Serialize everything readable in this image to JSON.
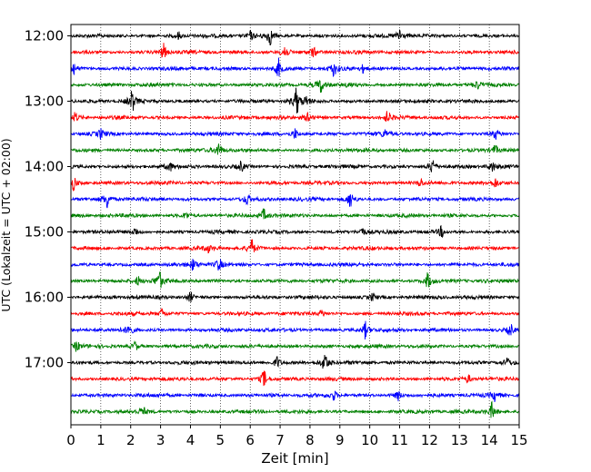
{
  "chart_data": {
    "type": "line",
    "title": "",
    "xlabel": "Zeit  [min]",
    "ylabel": "UTC (Lokalzeit = UTC + 02:00)",
    "xlim": [
      0,
      15
    ],
    "x_ticks": [
      "0",
      "1",
      "2",
      "3",
      "4",
      "5",
      "6",
      "7",
      "8",
      "9",
      "10",
      "11",
      "12",
      "13",
      "14",
      "15"
    ],
    "y_ticks": [
      "12:00",
      "13:00",
      "14:00",
      "15:00",
      "16:00",
      "17:00"
    ],
    "grid": "vertical dotted lines at each minute",
    "trace_colors": [
      "#000000",
      "#ff0000",
      "#0000ff",
      "#008000"
    ],
    "trace_start_times_utc": [
      "12:00",
      "12:15",
      "12:30",
      "12:45",
      "13:00",
      "13:15",
      "13:30",
      "13:45",
      "14:00",
      "14:15",
      "14:30",
      "14:45",
      "15:00",
      "15:15",
      "15:30",
      "15:45",
      "16:00",
      "16:15",
      "16:30",
      "16:45",
      "17:00",
      "17:15",
      "17:30",
      "17:45"
    ],
    "events": [
      {
        "trace": 0,
        "min": 3.6,
        "amp": 0.35
      },
      {
        "trace": 0,
        "min": 6.0,
        "amp": 0.4
      },
      {
        "trace": 0,
        "min": 6.65,
        "amp": 0.9
      },
      {
        "trace": 0,
        "min": 11.0,
        "amp": 0.8
      },
      {
        "trace": 1,
        "min": 3.1,
        "amp": 0.8
      },
      {
        "trace": 1,
        "min": 7.15,
        "amp": 0.9
      },
      {
        "trace": 1,
        "min": 8.1,
        "amp": 0.5
      },
      {
        "trace": 2,
        "min": 0.1,
        "amp": 0.6
      },
      {
        "trace": 2,
        "min": 6.95,
        "amp": 0.9
      },
      {
        "trace": 2,
        "min": 8.8,
        "amp": 0.7
      },
      {
        "trace": 2,
        "min": 9.8,
        "amp": 0.45
      },
      {
        "trace": 3,
        "min": 8.35,
        "amp": 0.7
      },
      {
        "trace": 3,
        "min": 9.3,
        "amp": 0.35
      },
      {
        "trace": 3,
        "min": 13.6,
        "amp": 0.35
      },
      {
        "trace": 4,
        "min": 2.05,
        "amp": 1.0
      },
      {
        "trace": 4,
        "min": 7.55,
        "amp": 1.3
      },
      {
        "trace": 4,
        "min": 7.9,
        "amp": 0.4
      },
      {
        "trace": 5,
        "min": 0.15,
        "amp": 0.45
      },
      {
        "trace": 5,
        "min": 7.95,
        "amp": 0.55
      },
      {
        "trace": 5,
        "min": 10.6,
        "amp": 0.6
      },
      {
        "trace": 6,
        "min": 1.0,
        "amp": 0.45
      },
      {
        "trace": 6,
        "min": 7.5,
        "amp": 0.5
      },
      {
        "trace": 6,
        "min": 10.5,
        "amp": 0.35
      },
      {
        "trace": 6,
        "min": 14.2,
        "amp": 0.5
      },
      {
        "trace": 7,
        "min": 4.95,
        "amp": 0.8
      },
      {
        "trace": 7,
        "min": 14.2,
        "amp": 0.5
      },
      {
        "trace": 8,
        "min": 3.3,
        "amp": 0.45
      },
      {
        "trace": 8,
        "min": 5.7,
        "amp": 0.5
      },
      {
        "trace": 8,
        "min": 12.1,
        "amp": 0.8
      },
      {
        "trace": 8,
        "min": 14.1,
        "amp": 0.5
      },
      {
        "trace": 9,
        "min": 0.1,
        "amp": 0.7
      },
      {
        "trace": 9,
        "min": 11.7,
        "amp": 0.45
      },
      {
        "trace": 9,
        "min": 14.2,
        "amp": 0.4
      },
      {
        "trace": 10,
        "min": 1.2,
        "amp": 0.9
      },
      {
        "trace": 10,
        "min": 5.9,
        "amp": 0.55
      },
      {
        "trace": 10,
        "min": 9.35,
        "amp": 0.9
      },
      {
        "trace": 11,
        "min": 6.45,
        "amp": 0.6
      },
      {
        "trace": 11,
        "min": 3.85,
        "amp": 0.4
      },
      {
        "trace": 12,
        "min": 2.15,
        "amp": 0.45
      },
      {
        "trace": 12,
        "min": 9.75,
        "amp": 0.45
      },
      {
        "trace": 12,
        "min": 12.4,
        "amp": 0.5
      },
      {
        "trace": 13,
        "min": 6.05,
        "amp": 0.8
      },
      {
        "trace": 13,
        "min": 4.6,
        "amp": 0.35
      },
      {
        "trace": 14,
        "min": 4.1,
        "amp": 0.55
      },
      {
        "trace": 14,
        "min": 4.95,
        "amp": 0.7
      },
      {
        "trace": 15,
        "min": 2.95,
        "amp": 1.0
      },
      {
        "trace": 15,
        "min": 2.25,
        "amp": 0.45
      },
      {
        "trace": 15,
        "min": 11.95,
        "amp": 0.8
      },
      {
        "trace": 16,
        "min": 4.0,
        "amp": 0.45
      },
      {
        "trace": 16,
        "min": 10.1,
        "amp": 0.4
      },
      {
        "trace": 17,
        "min": 3.05,
        "amp": 0.45
      },
      {
        "trace": 17,
        "min": 8.4,
        "amp": 0.35
      },
      {
        "trace": 18,
        "min": 1.95,
        "amp": 0.8
      },
      {
        "trace": 18,
        "min": 9.85,
        "amp": 0.8
      },
      {
        "trace": 18,
        "min": 14.7,
        "amp": 0.6
      },
      {
        "trace": 19,
        "min": 0.2,
        "amp": 0.5
      },
      {
        "trace": 19,
        "min": 2.15,
        "amp": 0.45
      },
      {
        "trace": 20,
        "min": 6.9,
        "amp": 0.6
      },
      {
        "trace": 20,
        "min": 8.5,
        "amp": 1.1
      },
      {
        "trace": 20,
        "min": 14.6,
        "amp": 0.4
      },
      {
        "trace": 21,
        "min": 6.45,
        "amp": 0.9
      },
      {
        "trace": 21,
        "min": 13.3,
        "amp": 0.35
      },
      {
        "trace": 22,
        "min": 8.8,
        "amp": 0.45
      },
      {
        "trace": 22,
        "min": 10.95,
        "amp": 0.5
      },
      {
        "trace": 22,
        "min": 14.2,
        "amp": 0.55
      },
      {
        "trace": 23,
        "min": 2.4,
        "amp": 0.45
      },
      {
        "trace": 23,
        "min": 14.1,
        "amp": 0.9
      }
    ]
  }
}
